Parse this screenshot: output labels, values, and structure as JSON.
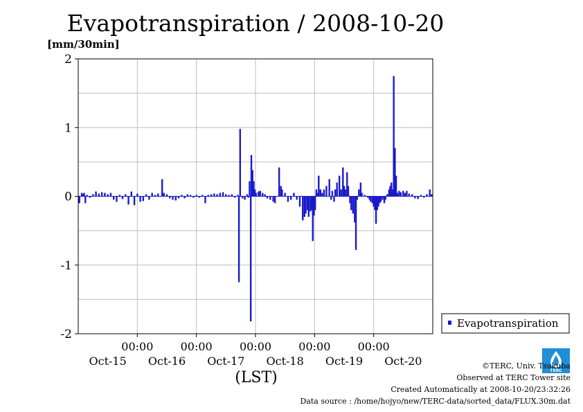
{
  "chart_data": {
    "type": "bar",
    "title": "Evapotranspiration / 2008-10-20",
    "ylabel": "[mm/30min]",
    "xlabel": "(LST)",
    "ylim": [
      -2,
      2
    ],
    "y_ticks": [
      "2",
      "1",
      "0",
      "-1",
      "-2"
    ],
    "x_range_days": [
      14.0,
      20.0
    ],
    "time_tick_label": "00:00",
    "day_labels": [
      "Oct-15",
      "Oct-16",
      "Oct-17",
      "Oct-18",
      "Oct-19",
      "Oct-20"
    ],
    "grid": true,
    "legend_position": "right",
    "series": [
      {
        "name": "Evapotranspiration",
        "color": "#1a1acc",
        "points": [
          [
            14.02,
            -0.1
          ],
          [
            14.06,
            0.05
          ],
          [
            14.08,
            0.03
          ],
          [
            14.1,
            0.05
          ],
          [
            14.12,
            -0.1
          ],
          [
            14.15,
            0.02
          ],
          [
            14.2,
            -0.02
          ],
          [
            14.25,
            0.03
          ],
          [
            14.3,
            0.07
          ],
          [
            14.35,
            0.04
          ],
          [
            14.4,
            0.06
          ],
          [
            14.45,
            0.05
          ],
          [
            14.5,
            0.03
          ],
          [
            14.55,
            0.05
          ],
          [
            14.6,
            -0.05
          ],
          [
            14.65,
            -0.08
          ],
          [
            14.7,
            0.02
          ],
          [
            14.75,
            -0.04
          ],
          [
            14.8,
            0.03
          ],
          [
            14.85,
            -0.12
          ],
          [
            14.9,
            0.07
          ],
          [
            14.95,
            -0.13
          ],
          [
            15.0,
            0.04
          ],
          [
            15.05,
            -0.08
          ],
          [
            15.1,
            -0.07
          ],
          [
            15.15,
            0.03
          ],
          [
            15.2,
            -0.05
          ],
          [
            15.25,
            0.05
          ],
          [
            15.3,
            0.02
          ],
          [
            15.35,
            0.04
          ],
          [
            15.42,
            0.25
          ],
          [
            15.45,
            0.05
          ],
          [
            15.5,
            0.03
          ],
          [
            15.55,
            -0.03
          ],
          [
            15.6,
            -0.05
          ],
          [
            15.65,
            -0.06
          ],
          [
            15.7,
            -0.03
          ],
          [
            15.75,
            0.02
          ],
          [
            15.8,
            -0.03
          ],
          [
            15.85,
            0.03
          ],
          [
            15.9,
            0.02
          ],
          [
            15.95,
            -0.02
          ],
          [
            16.0,
            0.02
          ],
          [
            16.05,
            -0.02
          ],
          [
            16.1,
            0.02
          ],
          [
            16.15,
            -0.1
          ],
          [
            16.2,
            0.02
          ],
          [
            16.25,
            0.03
          ],
          [
            16.3,
            0.04
          ],
          [
            16.35,
            0.03
          ],
          [
            16.4,
            0.05
          ],
          [
            16.45,
            0.06
          ],
          [
            16.5,
            0.03
          ],
          [
            16.55,
            0.02
          ],
          [
            16.6,
            0.03
          ],
          [
            16.65,
            -0.02
          ],
          [
            16.7,
            0.02
          ],
          [
            16.72,
            -1.25
          ],
          [
            16.74,
            0.98
          ],
          [
            16.78,
            -0.03
          ],
          [
            16.82,
            -0.05
          ],
          [
            16.86,
            0.03
          ],
          [
            16.88,
            -0.02
          ],
          [
            16.9,
            0.22
          ],
          [
            16.92,
            -1.82
          ],
          [
            16.93,
            0.6
          ],
          [
            16.95,
            0.38
          ],
          [
            16.97,
            0.22
          ],
          [
            16.99,
            0.1
          ],
          [
            17.01,
            0.05
          ],
          [
            17.05,
            0.07
          ],
          [
            17.08,
            0.08
          ],
          [
            17.12,
            0.05
          ],
          [
            17.16,
            0.03
          ],
          [
            17.2,
            -0.03
          ],
          [
            17.25,
            -0.05
          ],
          [
            17.3,
            -0.08
          ],
          [
            17.33,
            -0.1
          ],
          [
            17.4,
            0.42
          ],
          [
            17.43,
            0.15
          ],
          [
            17.45,
            0.1
          ],
          [
            17.5,
            0.05
          ],
          [
            17.55,
            -0.08
          ],
          [
            17.6,
            -0.05
          ],
          [
            17.65,
            0.05
          ],
          [
            17.7,
            -0.05
          ],
          [
            17.75,
            -0.15
          ],
          [
            17.8,
            -0.35
          ],
          [
            17.83,
            -0.3
          ],
          [
            17.85,
            -0.25
          ],
          [
            17.88,
            -0.2
          ],
          [
            17.9,
            -0.3
          ],
          [
            17.93,
            -0.22
          ],
          [
            17.95,
            -0.2
          ],
          [
            17.97,
            -0.65
          ],
          [
            17.99,
            -0.28
          ],
          [
            18.01,
            -0.2
          ],
          [
            18.03,
            0.1
          ],
          [
            18.05,
            0.05
          ],
          [
            18.07,
            0.3
          ],
          [
            18.1,
            0.1
          ],
          [
            18.13,
            0.05
          ],
          [
            18.16,
            0.1
          ],
          [
            18.2,
            0.15
          ],
          [
            18.25,
            0.25
          ],
          [
            18.28,
            -0.05
          ],
          [
            18.3,
            0.08
          ],
          [
            18.33,
            -0.08
          ],
          [
            18.35,
            0.1
          ],
          [
            18.38,
            0.2
          ],
          [
            18.42,
            0.3
          ],
          [
            18.45,
            0.1
          ],
          [
            18.48,
            0.42
          ],
          [
            18.5,
            0.15
          ],
          [
            18.52,
            0.1
          ],
          [
            18.55,
            0.35
          ],
          [
            18.57,
            0.15
          ],
          [
            18.6,
            -0.1
          ],
          [
            18.62,
            -0.2
          ],
          [
            18.65,
            -0.25
          ],
          [
            18.68,
            -0.38
          ],
          [
            18.7,
            -0.78
          ],
          [
            18.72,
            -0.05
          ],
          [
            18.75,
            0.1
          ],
          [
            18.78,
            0.2
          ],
          [
            18.8,
            0.05
          ],
          [
            18.85,
            0.02
          ],
          [
            18.9,
            -0.02
          ],
          [
            18.93,
            -0.05
          ],
          [
            18.95,
            -0.08
          ],
          [
            18.98,
            -0.1
          ],
          [
            19.0,
            -0.15
          ],
          [
            19.02,
            -0.2
          ],
          [
            19.04,
            -0.4
          ],
          [
            19.06,
            -0.2
          ],
          [
            19.08,
            -0.15
          ],
          [
            19.1,
            -0.1
          ],
          [
            19.12,
            -0.08
          ],
          [
            19.15,
            -0.05
          ],
          [
            19.18,
            -0.1
          ],
          [
            19.2,
            -0.05
          ],
          [
            19.23,
            0.03
          ],
          [
            19.26,
            0.1
          ],
          [
            19.28,
            0.15
          ],
          [
            19.3,
            0.2
          ],
          [
            19.32,
            0.1
          ],
          [
            19.34,
            1.75
          ],
          [
            19.36,
            0.7
          ],
          [
            19.38,
            0.3
          ],
          [
            19.4,
            0.05
          ],
          [
            19.43,
            0.08
          ],
          [
            19.46,
            0.06
          ],
          [
            19.5,
            0.08
          ],
          [
            19.53,
            0.05
          ],
          [
            19.56,
            0.08
          ],
          [
            19.6,
            0.04
          ],
          [
            19.65,
            0.03
          ],
          [
            19.7,
            -0.03
          ],
          [
            19.75,
            -0.04
          ],
          [
            19.8,
            0.02
          ],
          [
            19.85,
            -0.02
          ],
          [
            19.9,
            0.03
          ],
          [
            19.95,
            0.1
          ],
          [
            19.98,
            0.03
          ]
        ]
      }
    ]
  },
  "credits": {
    "copyright": "©TERC, Univ. Tsukuba",
    "site": "Observed at TERC Tower site",
    "created": "Created Automatically at 2008-10-20/23:32:26",
    "source": "Data source : /home/hojyo/new/TERC-data/sorted_data/FLUX.30m.dat"
  },
  "logo_text": "TERC"
}
